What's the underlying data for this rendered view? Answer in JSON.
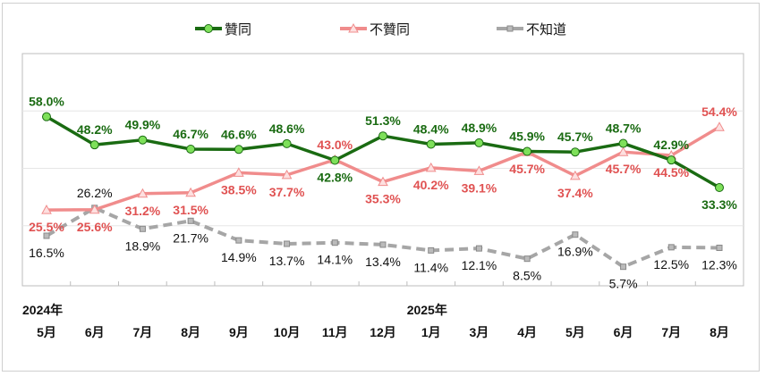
{
  "chart_data": {
    "type": "line",
    "categories": [
      "5月",
      "6月",
      "7月",
      "8月",
      "9月",
      "10月",
      "11月",
      "12月",
      "1月",
      "3月",
      "4月",
      "5月",
      "6月",
      "7月",
      "8月"
    ],
    "year_labels": [
      {
        "label": "2024年",
        "at_category": 0
      },
      {
        "label": "2025年",
        "at_category": 8
      }
    ],
    "ylim": [
      0,
      80
    ],
    "grid": true,
    "legend_position": "top",
    "series": [
      {
        "name": "贊同",
        "color": "#1a6b12",
        "marker_color": "#7ee05a",
        "marker": "circle",
        "dash": false,
        "values": [
          58.0,
          48.2,
          49.9,
          46.7,
          46.6,
          48.6,
          42.8,
          51.3,
          48.4,
          48.9,
          45.9,
          45.7,
          48.7,
          42.9,
          33.3
        ],
        "labels": [
          "58.0%",
          "48.2%",
          "49.9%",
          "46.7%",
          "46.6%",
          "48.6%",
          "42.8%",
          "51.3%",
          "48.4%",
          "48.9%",
          "45.9%",
          "45.7%",
          "48.7%",
          "42.9%",
          "33.3%"
        ]
      },
      {
        "name": "不贊同",
        "color": "#f08c8c",
        "label_color": "#e05252",
        "marker": "triangle",
        "dash": false,
        "values": [
          25.5,
          25.6,
          31.2,
          31.5,
          38.5,
          37.7,
          43.0,
          35.3,
          40.2,
          39.1,
          45.7,
          37.4,
          45.7,
          44.5,
          54.4
        ],
        "labels": [
          "25.5%",
          "25.6%",
          "31.2%",
          "31.5%",
          "38.5%",
          "37.7%",
          "43.0%",
          "35.3%",
          "40.2%",
          "39.1%",
          "45.7%",
          "37.4%",
          "45.7%",
          "44.5%",
          "54.4%"
        ]
      },
      {
        "name": "不知道",
        "color": "#a6a6a6",
        "label_color": "#111111",
        "marker": "square",
        "dash": true,
        "values": [
          16.5,
          26.2,
          18.9,
          21.7,
          14.9,
          13.7,
          14.1,
          13.4,
          11.4,
          12.1,
          8.5,
          16.9,
          5.7,
          12.5,
          12.3
        ],
        "labels": [
          "16.5%",
          "26.2%",
          "18.9%",
          "21.7%",
          "14.9%",
          "13.7%",
          "14.1%",
          "13.4%",
          "11.4%",
          "12.1%",
          "8.5%",
          "16.9%",
          "5.7%",
          "12.5%",
          "12.3%"
        ]
      }
    ]
  }
}
